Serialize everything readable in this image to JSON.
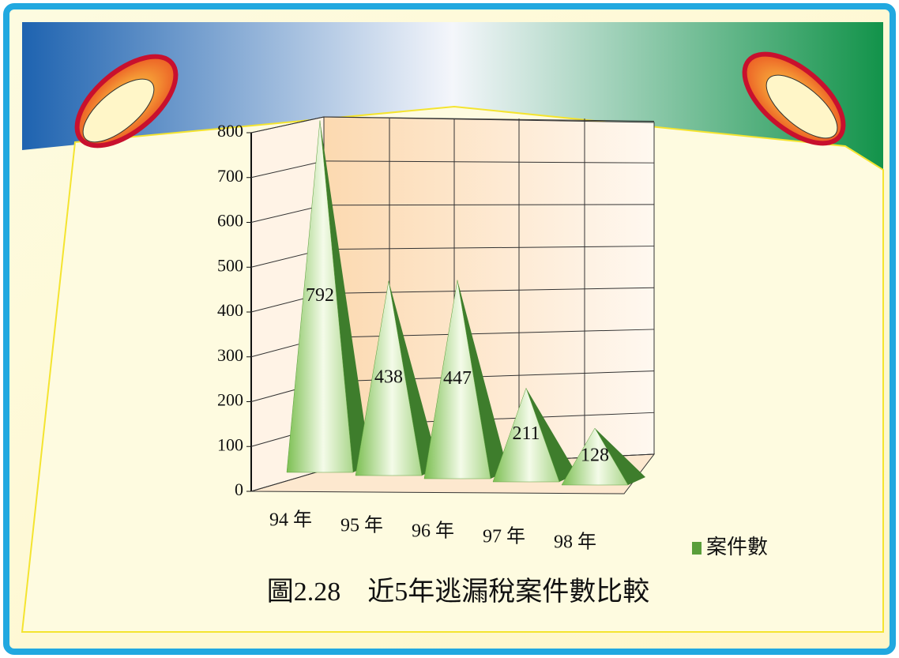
{
  "chart_data": {
    "type": "cone",
    "title": "圖2.28　近5年逃漏稅案件數比較",
    "categories": [
      "94 年",
      "95 年",
      "96 年",
      "97 年",
      "98 年"
    ],
    "series": [
      {
        "name": "案件數",
        "color": "#5a9e3a",
        "values": [
          792,
          438,
          447,
          211,
          128
        ]
      }
    ],
    "ylim": [
      0,
      800
    ],
    "yticks": [
      0,
      100,
      200,
      300,
      400,
      500,
      600,
      700,
      800
    ],
    "grid": true
  }
}
